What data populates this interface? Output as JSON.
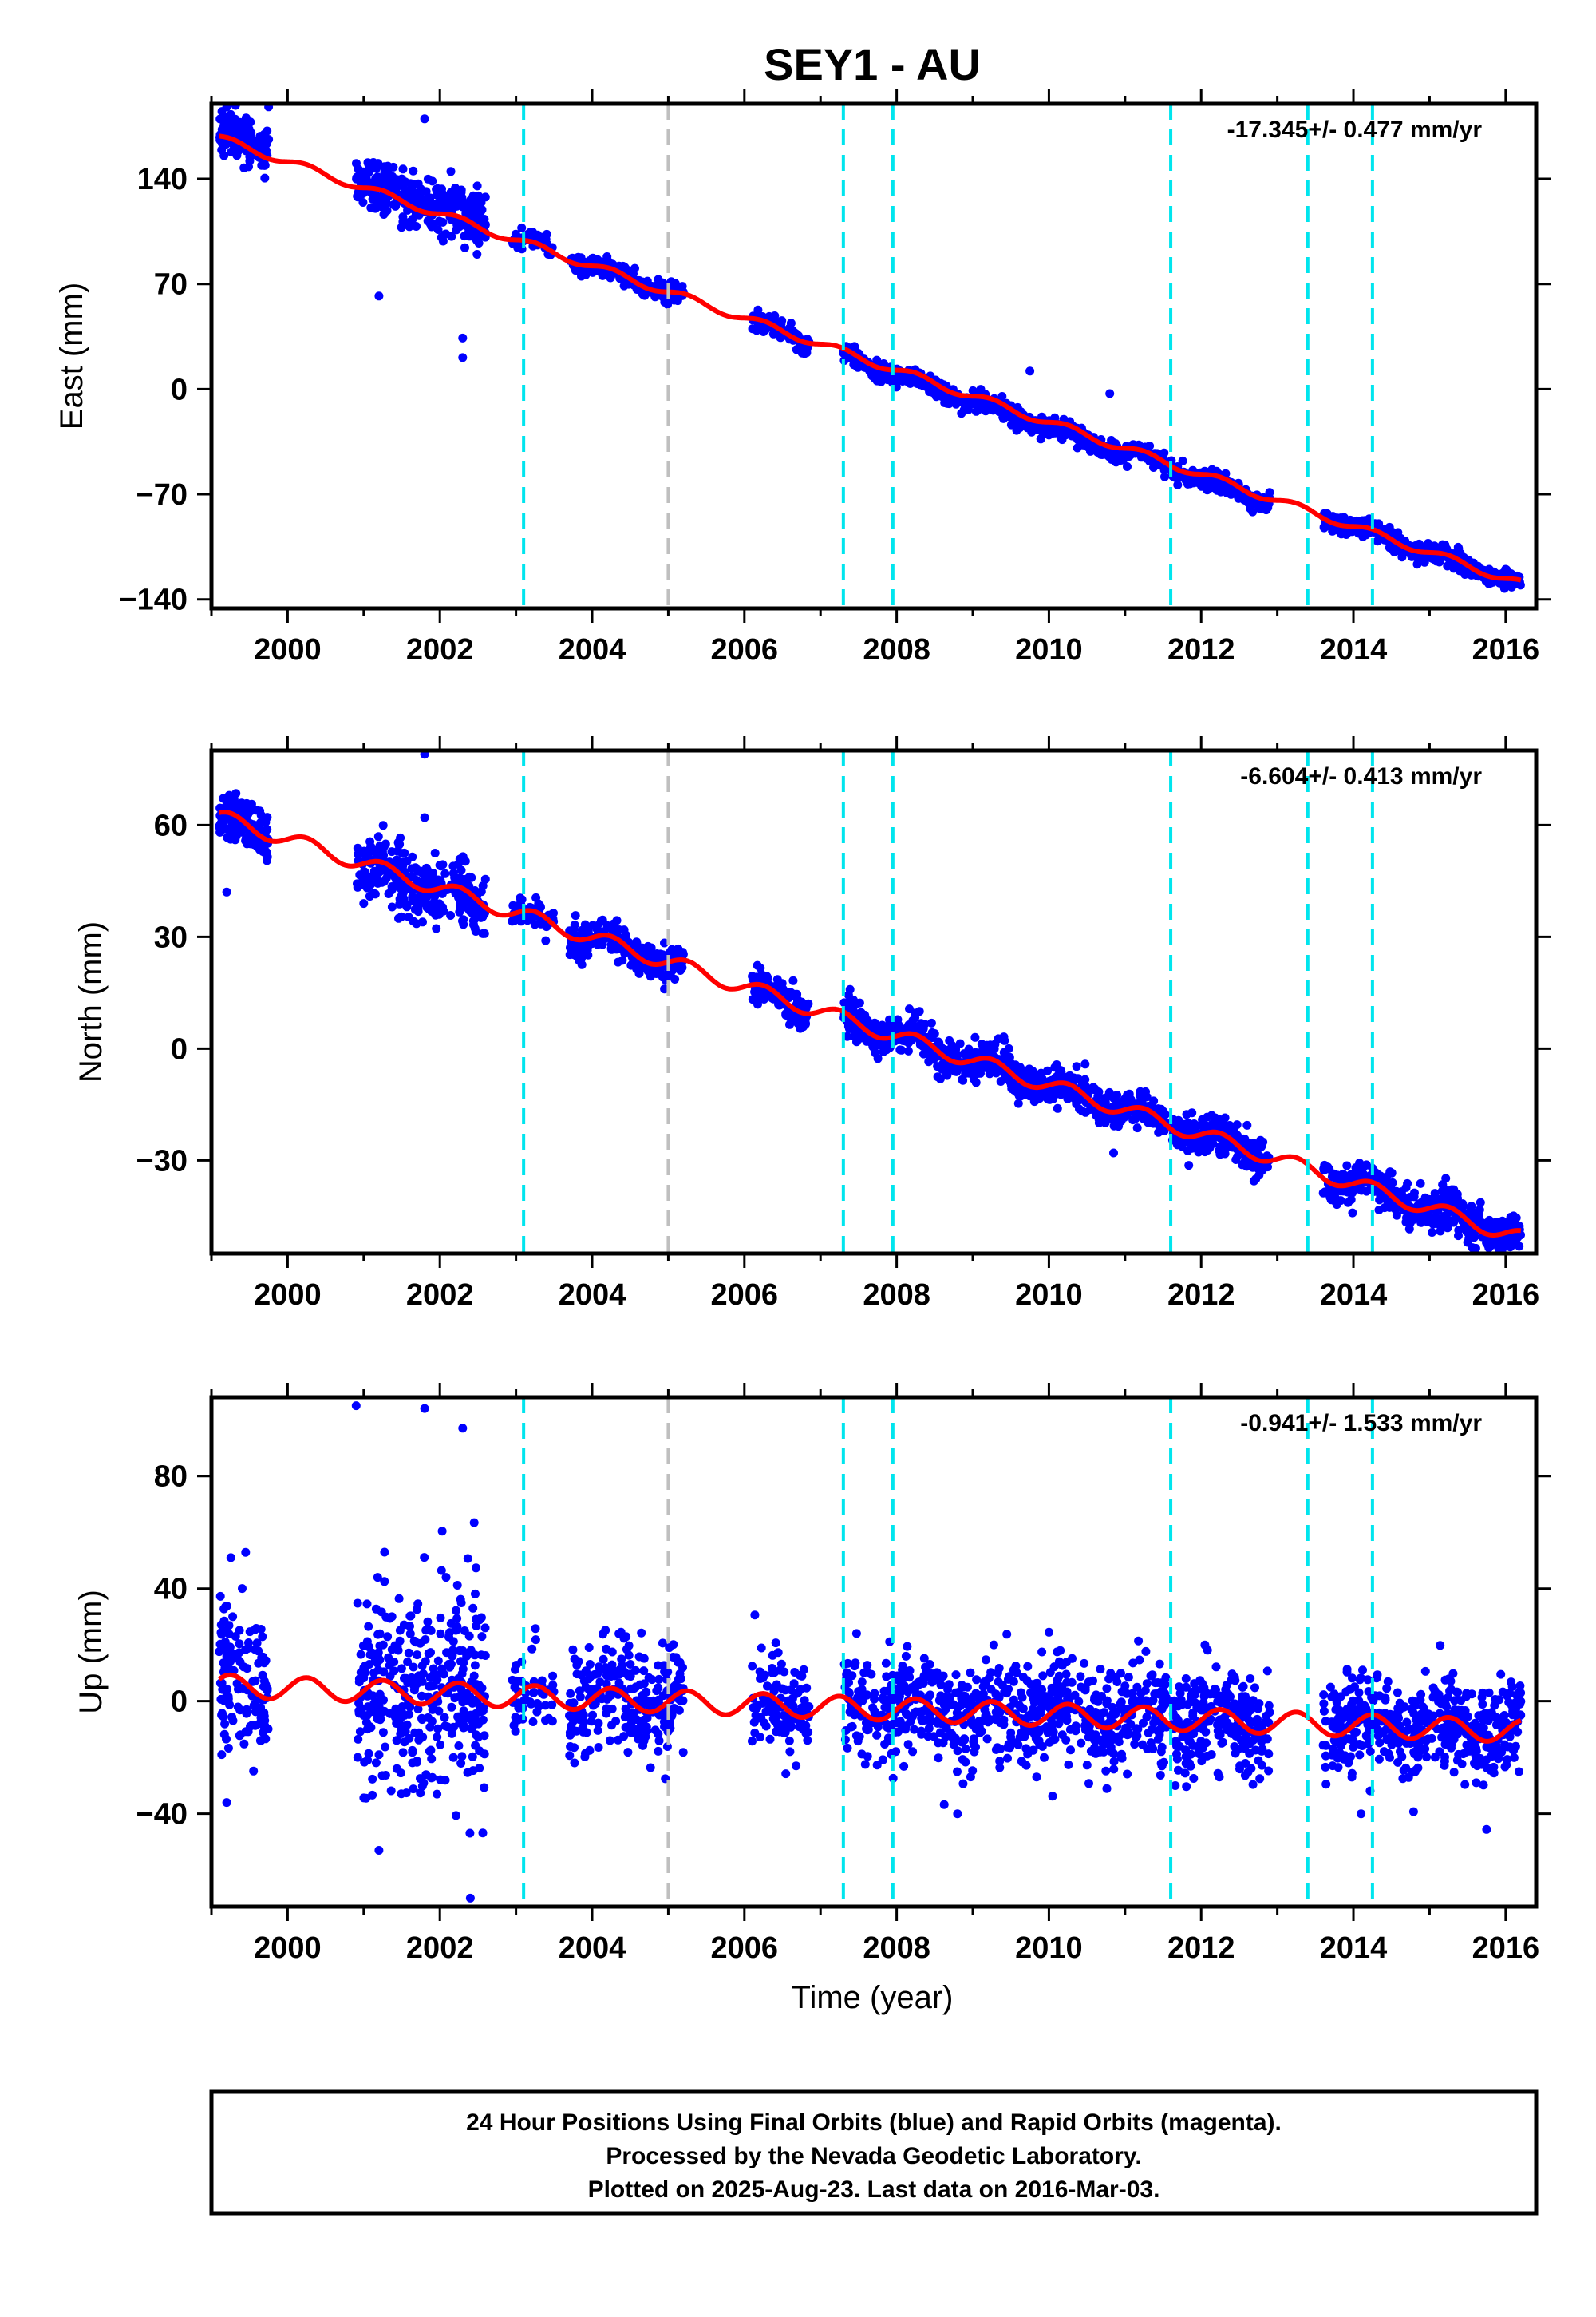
{
  "title": "SEY1 - AU",
  "xlabel": "Time (year)",
  "colors": {
    "points": "#0000ff",
    "model": "#ff0000",
    "antenna_break": "#00e5ee",
    "other_break": "#bfbfbf",
    "frame": "#000000"
  },
  "footer": {
    "line1": "24 Hour Positions Using Final Orbits (blue) and Rapid Orbits (magenta).",
    "line2": "Processed by the Nevada Geodetic Laboratory.",
    "line3": "Plotted on 2025-Aug-23. Last data on 2016-Mar-03."
  },
  "chart_data": [
    {
      "type": "scatter",
      "component": "east",
      "ylabel": "East (mm)",
      "rate_label": "-17.345+/- 0.477 mm/yr",
      "xlim": [
        1999.0,
        2016.4
      ],
      "ylim": [
        -146,
        190
      ],
      "x_ticks": [
        2000,
        2002,
        2004,
        2006,
        2008,
        2010,
        2012,
        2014,
        2016
      ],
      "x_tick_labels": [
        "2000",
        "2002",
        "2004",
        "2006",
        "2008",
        "2010",
        "2012",
        "2014",
        "2016"
      ],
      "y_ticks": [
        -140,
        -70,
        0,
        70,
        140
      ],
      "y_tick_labels": [
        "−140",
        "−70",
        "0",
        "70",
        "140"
      ],
      "rate_mm_per_yr": -17.345,
      "reference": {
        "year": 2007.0,
        "value": 30
      },
      "seasonal_amplitude": 2.5,
      "noise": 3,
      "segments": [
        {
          "start": 1999.1,
          "end": 1999.75,
          "offset": 5,
          "noise": 8,
          "n": 130
        },
        {
          "start": 2000.9,
          "end": 2002.6,
          "offset": 3,
          "noise": 9,
          "n": 320
        },
        {
          "start": 2002.95,
          "end": 2003.1,
          "offset": 0,
          "noise": 3,
          "n": 20
        },
        {
          "start": 2003.15,
          "end": 2003.5,
          "offset": 2,
          "noise": 2.5,
          "n": 40
        },
        {
          "start": 2003.7,
          "end": 2005.2,
          "offset": 0,
          "noise": 3,
          "n": 240
        },
        {
          "start": 2006.1,
          "end": 2006.85,
          "offset": 0,
          "noise": 3,
          "n": 110
        },
        {
          "start": 2007.3,
          "end": 2011.0,
          "offset": -3,
          "noise": 3,
          "n": 620
        },
        {
          "start": 2011.0,
          "end": 2011.55,
          "offset": -1,
          "noise": 3,
          "n": 90
        },
        {
          "start": 2011.6,
          "end": 2012.9,
          "offset": -3,
          "noise": 3,
          "n": 230
        },
        {
          "start": 2013.6,
          "end": 2016.2,
          "offset": 0,
          "noise": 3,
          "n": 460
        }
      ],
      "model_gaps": [],
      "outliers": [
        [
          1999.2,
          188
        ],
        [
          1999.75,
          188
        ],
        [
          2001.8,
          180
        ],
        [
          2002.3,
          34
        ],
        [
          2002.3,
          21
        ],
        [
          2001.2,
          62
        ],
        [
          2009.75,
          12
        ],
        [
          2010.8,
          -3
        ]
      ],
      "breaks": [
        {
          "x": 2003.1,
          "kind": "antenna"
        },
        {
          "x": 2005.0,
          "kind": "other"
        },
        {
          "x": 2007.3,
          "kind": "antenna"
        },
        {
          "x": 2007.95,
          "kind": "antenna"
        },
        {
          "x": 2011.6,
          "kind": "antenna"
        },
        {
          "x": 2013.4,
          "kind": "antenna"
        },
        {
          "x": 2014.25,
          "kind": "antenna"
        }
      ]
    },
    {
      "type": "scatter",
      "component": "north",
      "ylabel": "North (mm)",
      "rate_label": "-6.604+/- 0.413 mm/yr",
      "xlim": [
        1999.0,
        2016.4
      ],
      "ylim": [
        -55,
        80
      ],
      "x_ticks": [
        2000,
        2002,
        2004,
        2006,
        2008,
        2010,
        2012,
        2014,
        2016
      ],
      "x_tick_labels": [
        "2000",
        "2002",
        "2004",
        "2006",
        "2008",
        "2010",
        "2012",
        "2014",
        "2016"
      ],
      "y_ticks": [
        -30,
        0,
        30,
        60
      ],
      "y_tick_labels": [
        "−30",
        "0",
        "30",
        "60"
      ],
      "rate_mm_per_yr": -6.604,
      "reference": {
        "year": 2007.0,
        "value": 10
      },
      "seasonal_amplitude": 2.0,
      "noise": 2.5,
      "segments": [
        {
          "start": 1999.1,
          "end": 1999.75,
          "offset": 0,
          "noise": 3.5,
          "n": 130
        },
        {
          "start": 2000.9,
          "end": 2002.6,
          "offset": -1,
          "noise": 4,
          "n": 320
        },
        {
          "start": 2002.95,
          "end": 2003.1,
          "offset": 0,
          "noise": 2,
          "n": 20
        },
        {
          "start": 2003.15,
          "end": 2003.5,
          "offset": 0,
          "noise": 2,
          "n": 40
        },
        {
          "start": 2003.7,
          "end": 2005.2,
          "offset": 0,
          "noise": 2.5,
          "n": 240
        },
        {
          "start": 2006.1,
          "end": 2006.85,
          "offset": 0,
          "noise": 2.5,
          "n": 110
        },
        {
          "start": 2007.3,
          "end": 2011.0,
          "offset": 0,
          "noise": 2.5,
          "n": 620
        },
        {
          "start": 2011.0,
          "end": 2011.55,
          "offset": 0,
          "noise": 2.5,
          "n": 90
        },
        {
          "start": 2011.6,
          "end": 2012.9,
          "offset": 0,
          "noise": 2.5,
          "n": 230
        },
        {
          "start": 2013.6,
          "end": 2016.2,
          "offset": 0,
          "noise": 2.5,
          "n": 460
        }
      ],
      "model_gaps": [],
      "outliers": [
        [
          2001.8,
          79
        ],
        [
          2001.8,
          62
        ],
        [
          1999.2,
          42
        ],
        [
          2004.95,
          16
        ],
        [
          2010.85,
          -28
        ],
        [
          2012.85,
          -30
        ],
        [
          2015.5,
          -52
        ]
      ],
      "breaks": [
        {
          "x": 2003.1,
          "kind": "antenna"
        },
        {
          "x": 2005.0,
          "kind": "other"
        },
        {
          "x": 2007.3,
          "kind": "antenna"
        },
        {
          "x": 2007.95,
          "kind": "antenna"
        },
        {
          "x": 2011.6,
          "kind": "antenna"
        },
        {
          "x": 2013.4,
          "kind": "antenna"
        },
        {
          "x": 2014.25,
          "kind": "antenna"
        }
      ]
    },
    {
      "type": "scatter",
      "component": "up",
      "ylabel": "Up (mm)",
      "rate_label": "-0.941+/- 1.533 mm/yr",
      "xlim": [
        1999.0,
        2016.4
      ],
      "ylim": [
        -73,
        108
      ],
      "x_ticks": [
        2000,
        2002,
        2004,
        2006,
        2008,
        2010,
        2012,
        2014,
        2016
      ],
      "x_tick_labels": [
        "2000",
        "2002",
        "2004",
        "2006",
        "2008",
        "2010",
        "2012",
        "2014",
        "2016"
      ],
      "y_ticks": [
        -40,
        0,
        40,
        80
      ],
      "y_tick_labels": [
        "−40",
        "0",
        "40",
        "80"
      ],
      "rate_mm_per_yr": -0.941,
      "reference": {
        "year": 2007.0,
        "value": -2
      },
      "seasonal_amplitude": 4,
      "noise": 9,
      "segments": [
        {
          "start": 1999.1,
          "end": 1999.75,
          "offset": 0,
          "noise": 15,
          "n": 130
        },
        {
          "start": 2000.9,
          "end": 2002.6,
          "offset": 0,
          "noise": 18,
          "n": 360
        },
        {
          "start": 2002.95,
          "end": 2003.5,
          "offset": 0,
          "noise": 9,
          "n": 50
        },
        {
          "start": 2003.7,
          "end": 2005.2,
          "offset": 0,
          "noise": 9,
          "n": 240
        },
        {
          "start": 2006.1,
          "end": 2006.85,
          "offset": 0,
          "noise": 9,
          "n": 110
        },
        {
          "start": 2007.3,
          "end": 2011.0,
          "offset": 0,
          "noise": 9,
          "n": 620
        },
        {
          "start": 2011.0,
          "end": 2011.55,
          "offset": 0,
          "noise": 9,
          "n": 90
        },
        {
          "start": 2011.6,
          "end": 2012.9,
          "offset": 0,
          "noise": 9,
          "n": 230
        },
        {
          "start": 2013.6,
          "end": 2016.2,
          "offset": 0,
          "noise": 9,
          "n": 460
        }
      ],
      "model_gaps": [],
      "outliers": [
        [
          2000.9,
          105
        ],
        [
          2001.8,
          104
        ],
        [
          2002.3,
          97
        ],
        [
          2002.4,
          -70
        ],
        [
          2001.2,
          -53
        ],
        [
          2008.8,
          -40
        ],
        [
          2014.1,
          -40
        ],
        [
          1999.2,
          -36
        ]
      ],
      "breaks": [
        {
          "x": 2003.1,
          "kind": "antenna"
        },
        {
          "x": 2005.0,
          "kind": "other"
        },
        {
          "x": 2007.3,
          "kind": "antenna"
        },
        {
          "x": 2007.95,
          "kind": "antenna"
        },
        {
          "x": 2011.6,
          "kind": "antenna"
        },
        {
          "x": 2013.4,
          "kind": "antenna"
        },
        {
          "x": 2014.25,
          "kind": "antenna"
        }
      ]
    }
  ]
}
